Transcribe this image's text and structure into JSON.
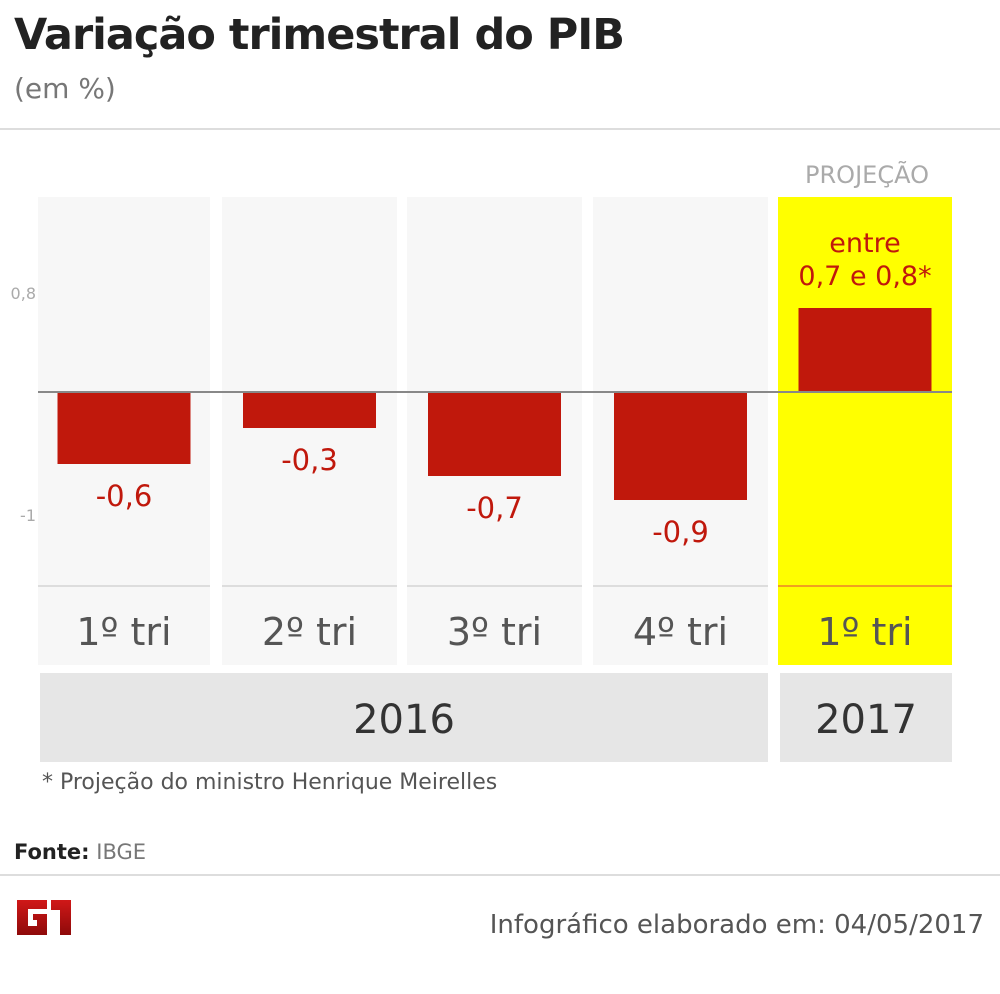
{
  "title": "Variação trimestral do PIB",
  "subtitle": "(em %)",
  "note": "* Projeção do ministro Henrique Meirelles",
  "source_label": "Fonte:",
  "source_value": "IBGE",
  "footer": "Infográfico elaborado em: 04/05/2017",
  "logo_text": "G1",
  "colors": {
    "bar": "#c0180c",
    "label": "#c0180c",
    "highlight": "#ffff00",
    "panel": "#f7f7f7",
    "year_bg": "#e6e6e6"
  },
  "chart_data": {
    "type": "bar",
    "title": "Variação trimestral do PIB",
    "ylabel": "em %",
    "yticks": [
      {
        "value": 0.8,
        "label": "0,8"
      },
      {
        "value": -1,
        "label": "-1"
      }
    ],
    "categories": [
      "1º tri",
      "2º tri",
      "3º tri",
      "4º tri",
      "1º tri"
    ],
    "groups": [
      {
        "label": "2016",
        "count": 4
      },
      {
        "label": "2017",
        "count": 1
      }
    ],
    "values": [
      -0.6,
      -0.3,
      -0.7,
      -0.9,
      0.7
    ],
    "value_labels": [
      "-0,6",
      "-0,3",
      "-0,7",
      "-0,9",
      "0,7 e 0,8*"
    ],
    "projection": {
      "header": "PROJEÇÃO",
      "prefix": "entre",
      "range": [
        0.7,
        0.8
      ],
      "index": 4
    }
  }
}
